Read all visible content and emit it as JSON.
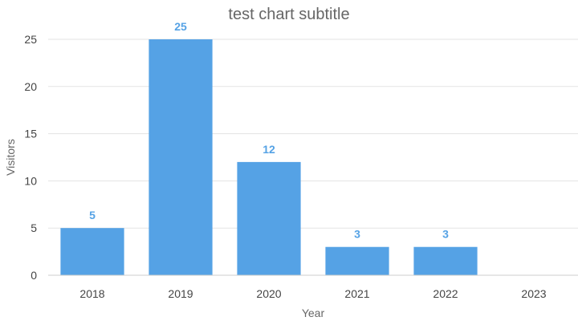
{
  "chart_data": {
    "type": "bar",
    "title": "test chart subtitle",
    "xlabel": "Year",
    "ylabel": "Visitors",
    "categories": [
      "2018",
      "2019",
      "2020",
      "2021",
      "2022",
      "2023"
    ],
    "values": [
      5,
      25,
      12,
      3,
      3,
      0
    ],
    "data_labels": [
      "5",
      "25",
      "12",
      "3",
      "3",
      ""
    ],
    "ylim": [
      0,
      25
    ],
    "yticks": [
      0,
      5,
      10,
      15,
      20,
      25
    ],
    "grid": true,
    "legend": "none",
    "bar_color": "#55a2e5",
    "label_color": "#55a2e5"
  }
}
